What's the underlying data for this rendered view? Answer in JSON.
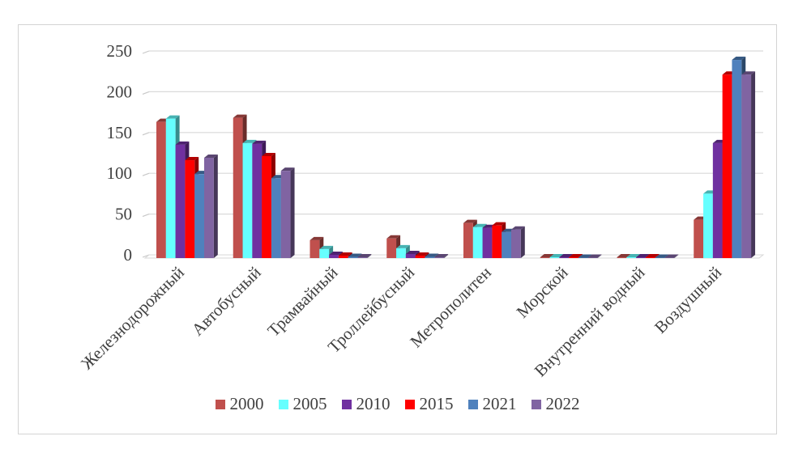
{
  "frame": {
    "background": "#ffffff",
    "border_color": "#d3d3d3"
  },
  "chart_data": {
    "type": "bar",
    "style": "3d-clustered-column",
    "title": "",
    "xlabel": "",
    "ylabel": "",
    "categories": [
      "Железнодорожный",
      "Автобусный",
      "Трамвайный",
      "Троллейбусный",
      "Метрополитен",
      "Морской",
      "Внутренний водный",
      "Воздушный"
    ],
    "series": [
      {
        "name": "2000",
        "color": "#C0504D",
        "values": [
          167,
          172,
          22,
          24,
          43,
          1,
          1,
          47
        ]
      },
      {
        "name": "2005",
        "color": "#66FFFF",
        "values": [
          171,
          141,
          11,
          12,
          38,
          1,
          1,
          79
        ]
      },
      {
        "name": "2010",
        "color": "#7030A0",
        "values": [
          139,
          140,
          4,
          5,
          37,
          1,
          1,
          141
        ]
      },
      {
        "name": "2015",
        "color": "#FF0000",
        "values": [
          120,
          125,
          3,
          3,
          40,
          1,
          1,
          225
        ]
      },
      {
        "name": "2021",
        "color": "#4F81BD",
        "values": [
          103,
          98,
          1.5,
          1.5,
          32,
          0.5,
          0.5,
          243
        ]
      },
      {
        "name": "2022",
        "color": "#8064A2",
        "values": [
          123,
          107,
          1,
          1,
          35,
          0.5,
          0.5,
          225
        ]
      }
    ],
    "ylim": [
      0,
      250
    ],
    "ytick_step": 50,
    "yticks": [
      "0",
      "50",
      "100",
      "150",
      "200",
      "250"
    ],
    "grid": "horizontal",
    "gridline_color": "#d9d9d9",
    "axis_text_color": "#404040",
    "legend_position": "bottom"
  }
}
